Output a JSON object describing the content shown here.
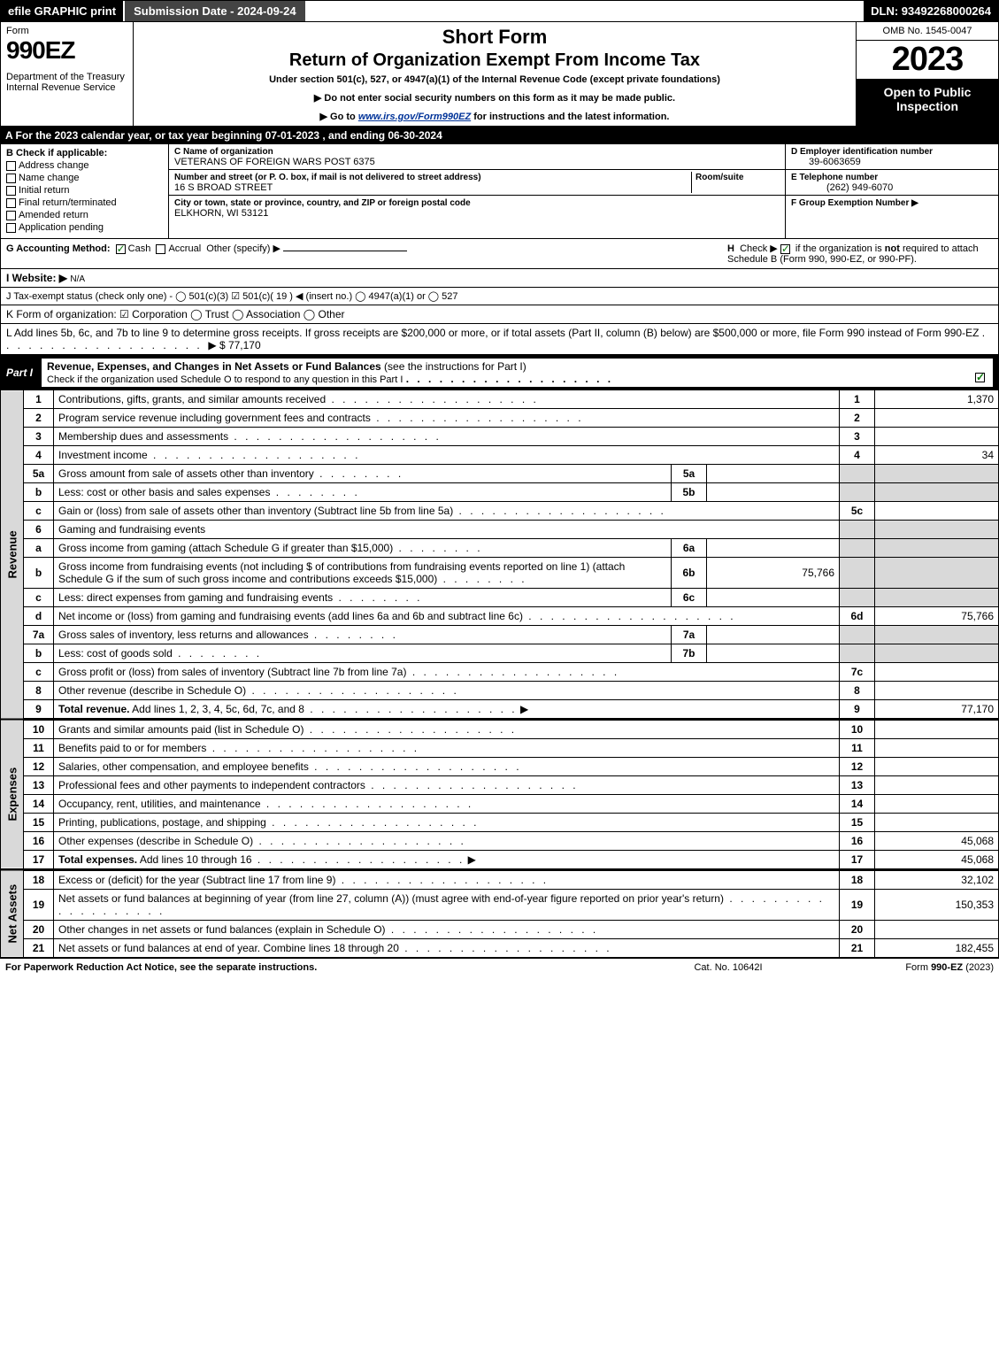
{
  "topbar": {
    "efile": "efile GRAPHIC print",
    "subdate": "Submission Date - 2024-09-24",
    "dln": "DLN: 93492268000264"
  },
  "header": {
    "form_word": "Form",
    "form_no": "990EZ",
    "dept": "Department of the Treasury\nInternal Revenue Service",
    "shortform": "Short Form",
    "title": "Return of Organization Exempt From Income Tax",
    "subtitle": "Under section 501(c), 527, or 4947(a)(1) of the Internal Revenue Code (except private foundations)",
    "instr1": "▶ Do not enter social security numbers on this form as it may be made public.",
    "instr2_pre": "▶ Go to ",
    "instr2_link": "www.irs.gov/Form990EZ",
    "instr2_post": " for instructions and the latest information.",
    "omb": "OMB No. 1545-0047",
    "year": "2023",
    "open": "Open to Public Inspection"
  },
  "sectionA": "A  For the 2023 calendar year, or tax year beginning 07-01-2023 , and ending 06-30-2024",
  "colB": {
    "label": "B  Check if applicable:",
    "items": [
      "Address change",
      "Name change",
      "Initial return",
      "Final return/terminated",
      "Amended return",
      "Application pending"
    ]
  },
  "colC": {
    "name_lbl": "C Name of organization",
    "name": "VETERANS OF FOREIGN WARS POST 6375",
    "street_lbl": "Number and street (or P. O. box, if mail is not delivered to street address)",
    "room_lbl": "Room/suite",
    "street": "16 S BROAD STREET",
    "city_lbl": "City or town, state or province, country, and ZIP or foreign postal code",
    "city": "ELKHORN, WI  53121"
  },
  "colD": {
    "ein_lbl": "D Employer identification number",
    "ein": "39-6063659",
    "tel_lbl": "E Telephone number",
    "tel": "(262) 949-6070",
    "grp_lbl": "F Group Exemption Number  ▶"
  },
  "rowG": {
    "label": "G Accounting Method:",
    "cash": "Cash",
    "accrual": "Accrual",
    "other": "Other (specify) ▶"
  },
  "rowH": "H  Check ▶      if the organization is not required to attach Schedule B (Form 990, 990-EZ, or 990-PF).",
  "rowI": {
    "label": "I Website: ▶",
    "value": "N/A"
  },
  "rowJ": "J Tax-exempt status (check only one) -  ◯ 501(c)(3)  ☑ 501(c)( 19 ) ◀ (insert no.)  ◯ 4947(a)(1) or  ◯ 527",
  "rowK": "K Form of organization:   ☑ Corporation   ◯ Trust   ◯ Association   ◯ Other",
  "rowL": {
    "text": "L Add lines 5b, 6c, and 7b to line 9 to determine gross receipts. If gross receipts are $200,000 or more, or if total assets (Part II, column (B) below) are $500,000 or more, file Form 990 instead of Form 990-EZ",
    "amount": "▶ $ 77,170"
  },
  "partI": {
    "tag": "Part I",
    "title": "Revenue, Expenses, and Changes in Net Assets or Fund Balances",
    "note": "(see the instructions for Part I)",
    "check_text": "Check if the organization used Schedule O to respond to any question in this Part I"
  },
  "revenue": [
    {
      "n": "1",
      "d": "Contributions, gifts, grants, and similar amounts received",
      "ln": "1",
      "v": "1,370"
    },
    {
      "n": "2",
      "d": "Program service revenue including government fees and contracts",
      "ln": "2",
      "v": ""
    },
    {
      "n": "3",
      "d": "Membership dues and assessments",
      "ln": "3",
      "v": ""
    },
    {
      "n": "4",
      "d": "Investment income",
      "ln": "4",
      "v": "34"
    },
    {
      "n": "5a",
      "d": "Gross amount from sale of assets other than inventory",
      "sub": "5a",
      "sv": ""
    },
    {
      "n": "b",
      "d": "Less: cost or other basis and sales expenses",
      "sub": "5b",
      "sv": ""
    },
    {
      "n": "c",
      "d": "Gain or (loss) from sale of assets other than inventory (Subtract line 5b from line 5a)",
      "ln": "5c",
      "v": ""
    },
    {
      "n": "6",
      "d": "Gaming and fundraising events",
      "noval": true
    },
    {
      "n": "a",
      "d": "Gross income from gaming (attach Schedule G if greater than $15,000)",
      "sub": "6a",
      "sv": ""
    },
    {
      "n": "b",
      "d": "Gross income from fundraising events (not including $                    of contributions from fundraising events reported on line 1) (attach Schedule G if the sum of such gross income and contributions exceeds $15,000)",
      "sub": "6b",
      "sv": "75,766"
    },
    {
      "n": "c",
      "d": "Less: direct expenses from gaming and fundraising events",
      "sub": "6c",
      "sv": ""
    },
    {
      "n": "d",
      "d": "Net income or (loss) from gaming and fundraising events (add lines 6a and 6b and subtract line 6c)",
      "ln": "6d",
      "v": "75,766"
    },
    {
      "n": "7a",
      "d": "Gross sales of inventory, less returns and allowances",
      "sub": "7a",
      "sv": ""
    },
    {
      "n": "b",
      "d": "Less: cost of goods sold",
      "sub": "7b",
      "sv": ""
    },
    {
      "n": "c",
      "d": "Gross profit or (loss) from sales of inventory (Subtract line 7b from line 7a)",
      "ln": "7c",
      "v": ""
    },
    {
      "n": "8",
      "d": "Other revenue (describe in Schedule O)",
      "ln": "8",
      "v": ""
    },
    {
      "n": "9",
      "d": "Total revenue. Add lines 1, 2, 3, 4, 5c, 6d, 7c, and 8",
      "ln": "9",
      "v": "77,170",
      "bold": true,
      "arrow": true
    }
  ],
  "expenses": [
    {
      "n": "10",
      "d": "Grants and similar amounts paid (list in Schedule O)",
      "ln": "10",
      "v": ""
    },
    {
      "n": "11",
      "d": "Benefits paid to or for members",
      "ln": "11",
      "v": ""
    },
    {
      "n": "12",
      "d": "Salaries, other compensation, and employee benefits",
      "ln": "12",
      "v": ""
    },
    {
      "n": "13",
      "d": "Professional fees and other payments to independent contractors",
      "ln": "13",
      "v": ""
    },
    {
      "n": "14",
      "d": "Occupancy, rent, utilities, and maintenance",
      "ln": "14",
      "v": ""
    },
    {
      "n": "15",
      "d": "Printing, publications, postage, and shipping",
      "ln": "15",
      "v": ""
    },
    {
      "n": "16",
      "d": "Other expenses (describe in Schedule O)",
      "ln": "16",
      "v": "45,068"
    },
    {
      "n": "17",
      "d": "Total expenses. Add lines 10 through 16",
      "ln": "17",
      "v": "45,068",
      "bold": true,
      "arrow": true
    }
  ],
  "netassets": [
    {
      "n": "18",
      "d": "Excess or (deficit) for the year (Subtract line 17 from line 9)",
      "ln": "18",
      "v": "32,102"
    },
    {
      "n": "19",
      "d": "Net assets or fund balances at beginning of year (from line 27, column (A)) (must agree with end-of-year figure reported on prior year's return)",
      "ln": "19",
      "v": "150,353"
    },
    {
      "n": "20",
      "d": "Other changes in net assets or fund balances (explain in Schedule O)",
      "ln": "20",
      "v": ""
    },
    {
      "n": "21",
      "d": "Net assets or fund balances at end of year. Combine lines 18 through 20",
      "ln": "21",
      "v": "182,455"
    }
  ],
  "sidebar": {
    "revenue": "Revenue",
    "expenses": "Expenses",
    "netassets": "Net Assets"
  },
  "footer": {
    "l": "For Paperwork Reduction Act Notice, see the separate instructions.",
    "c": "Cat. No. 10642I",
    "r": "Form 990-EZ (2023)"
  }
}
